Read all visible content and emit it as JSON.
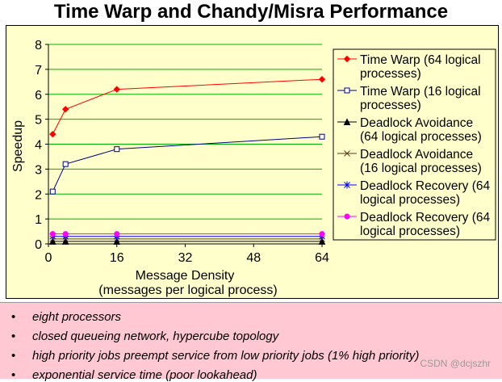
{
  "header": {
    "title": "Time Warp and Chandy/Misra Performance"
  },
  "chart_data": {
    "type": "line",
    "title": "Time Warp and Chandy/Misra Performance",
    "xlabel_line1": "Message Density",
    "xlabel_line2": "(messages per logical process)",
    "ylabel": "Speedup",
    "xlim": [
      0,
      64
    ],
    "ylim": [
      0,
      8
    ],
    "xticks": [
      0,
      16,
      32,
      48,
      64
    ],
    "yticks": [
      0,
      1,
      2,
      3,
      4,
      5,
      6,
      7,
      8
    ],
    "grid": true,
    "legend_position": "right",
    "series": [
      {
        "name": "Time Warp (64 logical processes)",
        "legend_lines": [
          "Time Warp (64 logical",
          "processes)"
        ],
        "color": "#ff0000",
        "marker": "diamond",
        "x": [
          1,
          4,
          16,
          64
        ],
        "values": [
          4.4,
          5.4,
          6.2,
          6.6
        ]
      },
      {
        "name": "Time Warp (16 logical processes)",
        "legend_lines": [
          "Time Warp (16 logical",
          "processes)"
        ],
        "color": "#00008b",
        "marker": "square",
        "x": [
          1,
          4,
          16,
          64
        ],
        "values": [
          2.1,
          3.2,
          3.8,
          4.3
        ]
      },
      {
        "name": "Deadlock Avoidance (64 logical processes)",
        "legend_lines": [
          "Deadlock Avoidance",
          "(64 logical processes)"
        ],
        "color": "#000000",
        "marker": "triangle",
        "x": [
          1,
          4,
          16,
          64
        ],
        "values": [
          0.1,
          0.1,
          0.1,
          0.1
        ]
      },
      {
        "name": "Deadlock Avoidance (16 logical processes)",
        "legend_lines": [
          "Deadlock Avoidance",
          "(16 logical processes)"
        ],
        "color": "#5a3a1a",
        "marker": "x",
        "x": [
          1,
          4,
          16,
          64
        ],
        "values": [
          0.2,
          0.2,
          0.2,
          0.2
        ]
      },
      {
        "name": "Deadlock Recovery (64 logical processes)",
        "legend_lines": [
          "Deadlock Recovery (64",
          "logical processes)"
        ],
        "color": "#0000ff",
        "marker": "star",
        "x": [
          1,
          4,
          16,
          64
        ],
        "values": [
          0.3,
          0.3,
          0.3,
          0.3
        ]
      },
      {
        "name": "Deadlock Recovery (64 logical processes)",
        "legend_lines": [
          "Deadlock Recovery (64",
          "logical processes)"
        ],
        "color": "#ff00ff",
        "marker": "circle",
        "x": [
          1,
          4,
          16,
          64
        ],
        "values": [
          0.4,
          0.4,
          0.4,
          0.4
        ]
      }
    ]
  },
  "notes": {
    "bullet": "•",
    "items": [
      "eight processors",
      "closed queueing network, hypercube topology",
      "high priority jobs preempt service from low priority jobs (1% high priority)",
      "exponential service time (poor lookahead)"
    ]
  },
  "watermark": "CSDN @dcjszhr"
}
